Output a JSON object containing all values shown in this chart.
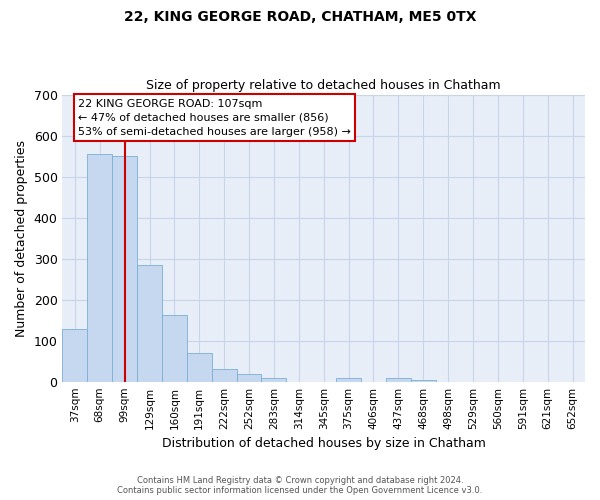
{
  "title_line1": "22, KING GEORGE ROAD, CHATHAM, ME5 0TX",
  "title_line2": "Size of property relative to detached houses in Chatham",
  "xlabel": "Distribution of detached houses by size in Chatham",
  "ylabel": "Number of detached properties",
  "categories": [
    "37sqm",
    "68sqm",
    "99sqm",
    "129sqm",
    "160sqm",
    "191sqm",
    "222sqm",
    "252sqm",
    "283sqm",
    "314sqm",
    "345sqm",
    "375sqm",
    "406sqm",
    "437sqm",
    "468sqm",
    "498sqm",
    "529sqm",
    "560sqm",
    "591sqm",
    "621sqm",
    "652sqm"
  ],
  "values": [
    128,
    555,
    550,
    284,
    163,
    69,
    30,
    18,
    9,
    0,
    0,
    10,
    0,
    9,
    5,
    0,
    0,
    0,
    0,
    0,
    0
  ],
  "bar_color": "#c5d8f0",
  "bar_edge_color": "#7bafd4",
  "grid_color": "#c8d4e8",
  "background_color": "#e8eef8",
  "vline_x_index": 2,
  "vline_color": "#cc0000",
  "annotation_text": "22 KING GEORGE ROAD: 107sqm\n← 47% of detached houses are smaller (856)\n53% of semi-detached houses are larger (958) →",
  "annotation_box_color": "#ffffff",
  "annotation_box_edge": "#cc0000",
  "ylim": [
    0,
    700
  ],
  "yticks": [
    0,
    100,
    200,
    300,
    400,
    500,
    600,
    700
  ],
  "footer_line1": "Contains HM Land Registry data © Crown copyright and database right 2024.",
  "footer_line2": "Contains public sector information licensed under the Open Government Licence v3.0."
}
